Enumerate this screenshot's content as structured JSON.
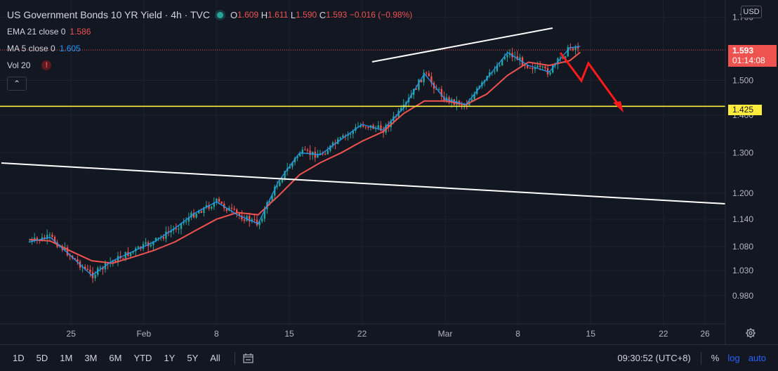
{
  "legend": {
    "title": "US Government Bonds 10 YR Yield · 4h · TVC",
    "open_label": "O",
    "open": "1.609",
    "high_label": "H",
    "high": "1.611",
    "low_label": "L",
    "low": "1.590",
    "close_label": "C",
    "close": "1.593",
    "change": "−0.016 (−0.98%)",
    "ema_name": "EMA 21 close 0",
    "ema_value": "1.586",
    "ma_name": "MA 5 close 0",
    "ma_value": "1.605",
    "vol_name": "Vol 20",
    "warn_glyph": "!",
    "collapse_glyph": "⌃"
  },
  "axis": {
    "currency": "USD"
  },
  "price_tags": {
    "last_price": "1.593",
    "countdown": "01:14:08",
    "level": "1.425"
  },
  "bottom_bar": {
    "timeframes": [
      "1D",
      "5D",
      "1M",
      "3M",
      "6M",
      "YTD",
      "1Y",
      "5Y",
      "All"
    ],
    "clock": "09:30:52 (UTC+8)",
    "percent": "%",
    "log": "log",
    "auto": "auto"
  },
  "colors": {
    "background": "#131722",
    "up_candle": "#26a69a",
    "down_candle": "#ef5350",
    "ema_line": "#ef5350",
    "ma_line": "#2196f3",
    "horizontal_level": "#ffeb3b",
    "trendlines": "#ffffff",
    "projection_arrow": "#ff1a1a"
  },
  "icons": {
    "calendar": "calendar-range-icon",
    "settings": "gear-icon"
  },
  "chart_data": {
    "type": "line",
    "title": "US Government Bonds 10 YR Yield · 4h · TVC",
    "y_scale": "log",
    "ylim": [
      0.945,
      1.715
    ],
    "y_ticks": [
      "1.700",
      "1.500",
      "1.400",
      "1.300",
      "1.200",
      "1.140",
      "1.080",
      "1.030",
      "0.980"
    ],
    "x_ticks": [
      "25",
      "Feb",
      "8",
      "15",
      "22",
      "Mar",
      "8",
      "15",
      "22",
      "26"
    ],
    "series": [
      {
        "name": "EMA 21 close 0",
        "x": [
          "Jan 21",
          "Jan 23",
          "Jan 25",
          "Jan 27",
          "Jan 29",
          "Jan 31",
          "Feb 2",
          "Feb 4",
          "Feb 6",
          "Feb 8",
          "Feb 10",
          "Feb 12",
          "Feb 14",
          "Feb 16",
          "Feb 18",
          "Feb 20",
          "Feb 22",
          "Feb 24",
          "Feb 26",
          "Feb 28",
          "Mar 2",
          "Mar 4",
          "Mar 6",
          "Mar 8",
          "Mar 10",
          "Mar 12",
          "Mar 14",
          "Mar 15"
        ],
        "values": [
          1.095,
          1.092,
          1.07,
          1.05,
          1.045,
          1.058,
          1.072,
          1.09,
          1.115,
          1.14,
          1.155,
          1.15,
          1.195,
          1.245,
          1.275,
          1.3,
          1.33,
          1.355,
          1.405,
          1.44,
          1.44,
          1.43,
          1.46,
          1.515,
          1.555,
          1.545,
          1.56,
          1.586
        ]
      },
      {
        "name": "MA 5 close 0",
        "x": [
          "Jan 21",
          "Jan 23",
          "Jan 25",
          "Jan 27",
          "Jan 29",
          "Jan 31",
          "Feb 2",
          "Feb 4",
          "Feb 6",
          "Feb 8",
          "Feb 10",
          "Feb 12",
          "Feb 14",
          "Feb 16",
          "Feb 18",
          "Feb 20",
          "Feb 22",
          "Feb 24",
          "Feb 26",
          "Feb 28",
          "Mar 2",
          "Mar 4",
          "Mar 6",
          "Mar 8",
          "Mar 10",
          "Mar 12",
          "Mar 14",
          "Mar 15"
        ],
        "values": [
          1.09,
          1.1,
          1.06,
          1.02,
          1.05,
          1.07,
          1.09,
          1.12,
          1.155,
          1.18,
          1.15,
          1.13,
          1.23,
          1.3,
          1.295,
          1.335,
          1.375,
          1.36,
          1.42,
          1.52,
          1.445,
          1.43,
          1.505,
          1.585,
          1.545,
          1.525,
          1.6,
          1.605
        ]
      }
    ],
    "annotations": {
      "horizontal_level": 1.425,
      "last_price": 1.593
    }
  }
}
